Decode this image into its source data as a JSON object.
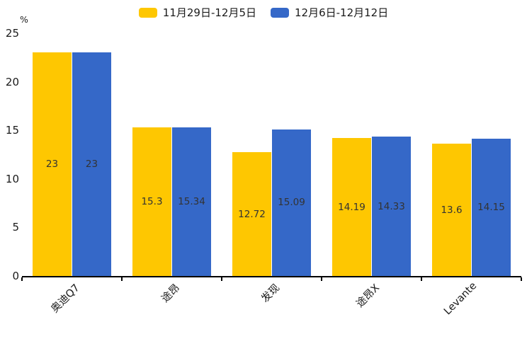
{
  "y_axis": {
    "unit": "%",
    "ticks": [
      25,
      20,
      15,
      10,
      5,
      0
    ]
  },
  "chart_data": {
    "type": "bar",
    "title": "",
    "categories": [
      "奥迪Q7",
      "途昂",
      "发现",
      "途昂X",
      "Levante"
    ],
    "series": [
      {
        "name": "11月29日-12月5日",
        "color": "#FEC701",
        "values": [
          23,
          15.3,
          12.72,
          14.19,
          13.6
        ]
      },
      {
        "name": "12月6日-12月12日",
        "color": "#3568C8",
        "values": [
          23,
          15.34,
          15.09,
          14.33,
          14.15
        ]
      }
    ],
    "xlabel": "",
    "ylabel": "%",
    "ylim": [
      0,
      25
    ],
    "grid": false,
    "legend_position": "top",
    "bar_value_labels": "inside-middle"
  },
  "colors": {
    "background": "#ffffff",
    "axis": "#000000",
    "tick_label": "#1a1a1a",
    "value_label": "#333333"
  }
}
